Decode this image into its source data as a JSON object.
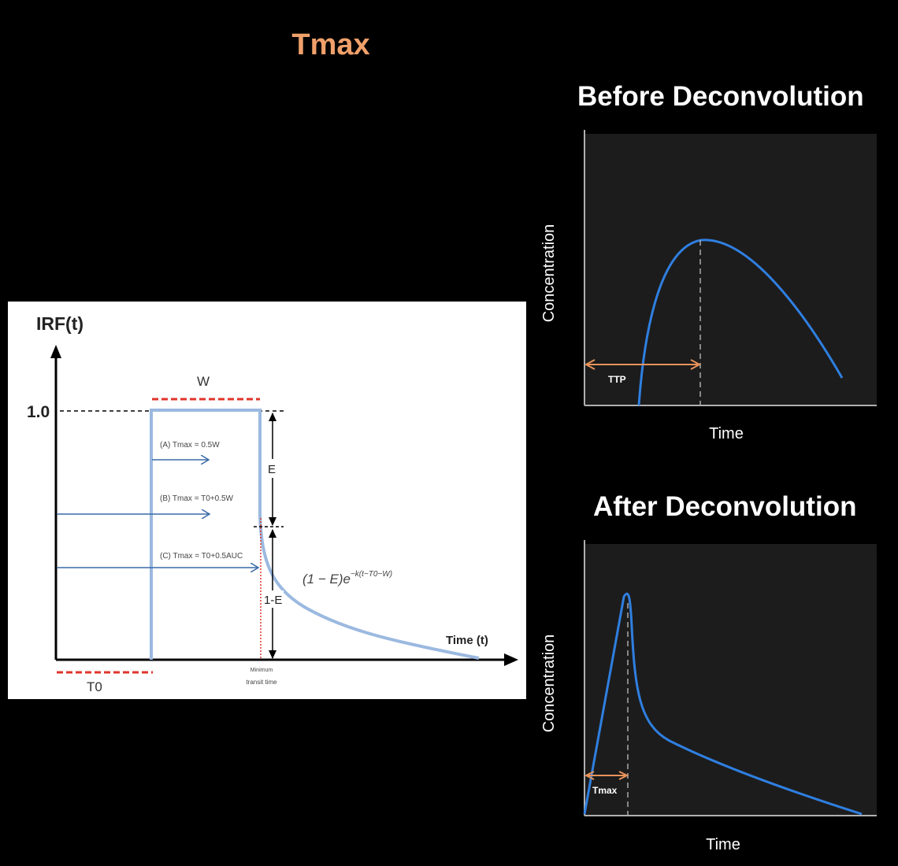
{
  "slide": {
    "title": "Tmax"
  },
  "irf_diagram": {
    "y_axis_label": "IRF(t)",
    "x_axis_label": "Time (t)",
    "y_tick": "1.0",
    "w_label": "W",
    "t0_label": "T0",
    "e_label": "E",
    "one_minus_e_label": "1-E",
    "arrow_a": "(A) Tmax = 0.5W",
    "arrow_b": "(B) Tmax = T0+0.5W",
    "arrow_c": "(C) Tmax = T0+0.5AUC",
    "formula_base": "(1 − E)e",
    "formula_exp": "−k(t−T0−W)",
    "min_transit_line1": "Minimum",
    "min_transit_line2": "transit time",
    "colors": {
      "curve": "#9bb9e0",
      "arrows": "#3a6aa8",
      "dashes": "#e0352b"
    }
  },
  "before": {
    "title": "Before Deconvolution",
    "x_label": "Time",
    "y_label": "Concentration",
    "marker_label": "TTP"
  },
  "after": {
    "title": "After Deconvolution",
    "x_label": "Time",
    "y_label": "Concentration",
    "marker_label": "Tmax"
  },
  "colors": {
    "accent": "#f0a06a",
    "curve": "#2f7fe0",
    "plot_bg": "#1c1c1c"
  }
}
